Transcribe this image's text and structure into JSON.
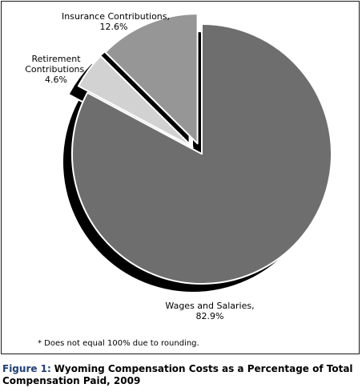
{
  "chart_data": {
    "type": "pie",
    "slices": [
      {
        "label": "Wages and Salaries,",
        "value": 82.9,
        "value_label": "82.9%",
        "color": "#6e6e6e"
      },
      {
        "label": "Retirement Contributions,",
        "value": 4.6,
        "value_label": "4.6%",
        "color": "#d2d2d2"
      },
      {
        "label": "Insurance Contributions,",
        "value": 12.6,
        "value_label": "12.6%",
        "color": "#969696"
      }
    ],
    "label_lines": {
      "retirement": [
        "Retirement",
        "Contributions,"
      ]
    },
    "note": "* Does not equal 100% due to rounding.",
    "figure_number": "Figure 1:",
    "title": "Wyoming Compensation Costs as a Percentage of Total Compensation Paid, 2009"
  }
}
